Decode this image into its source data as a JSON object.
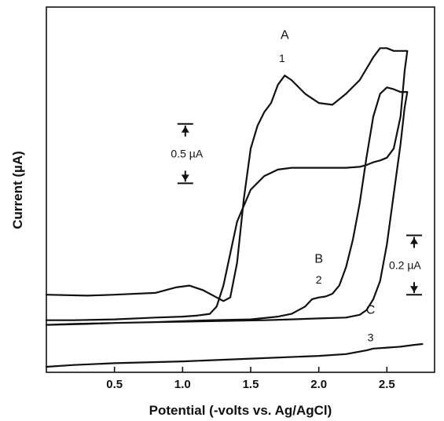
{
  "chart_data": {
    "type": "line",
    "title": "",
    "xlabel": "Potential (-volts vs. Ag/AgCl)",
    "ylabel": "Current (µA)",
    "xlim": [
      0.0,
      2.85
    ],
    "ylim": [
      0.0,
      4.0
    ],
    "x_ticks": [
      0.5,
      1.0,
      1.5,
      2.0,
      2.5
    ],
    "x_tick_labels": [
      "0.5",
      "1.0",
      "1.5",
      "2.0",
      "2.5"
    ],
    "grid": false,
    "series": [
      {
        "name": "A",
        "x": [
          0.0,
          0.3,
          0.5,
          0.8,
          0.95,
          1.05,
          1.15,
          1.25,
          1.3,
          1.35,
          1.4,
          1.45,
          1.5,
          1.55,
          1.6,
          1.65,
          1.7,
          1.75,
          1.8,
          1.9,
          2.0,
          2.1,
          2.2,
          2.3,
          2.4,
          2.45,
          2.5,
          2.55,
          2.6,
          2.65,
          2.63,
          2.6,
          2.55,
          2.5,
          2.45,
          2.4,
          2.35,
          2.3,
          2.2,
          2.1,
          2.0,
          1.9,
          1.8,
          1.7,
          1.6,
          1.5,
          1.4,
          1.3,
          1.25,
          1.2,
          1.1,
          1.0,
          0.8,
          0.5,
          0.2,
          0.0
        ],
        "y": [
          0.85,
          0.84,
          0.85,
          0.87,
          0.93,
          0.95,
          0.9,
          0.82,
          0.78,
          0.82,
          1.2,
          1.9,
          2.45,
          2.7,
          2.85,
          2.95,
          3.15,
          3.25,
          3.2,
          3.05,
          2.95,
          2.93,
          3.05,
          3.2,
          3.45,
          3.55,
          3.55,
          3.52,
          3.52,
          3.52,
          3.3,
          2.8,
          2.45,
          2.35,
          2.32,
          2.3,
          2.27,
          2.25,
          2.24,
          2.24,
          2.24,
          2.24,
          2.24,
          2.22,
          2.15,
          2.0,
          1.65,
          0.95,
          0.72,
          0.64,
          0.62,
          0.61,
          0.6,
          0.58,
          0.57,
          0.57
        ]
      },
      {
        "name": "B",
        "x": [
          0.0,
          0.3,
          0.5,
          0.8,
          1.0,
          1.2,
          1.5,
          1.7,
          1.8,
          1.9,
          1.95,
          2.0,
          2.05,
          2.1,
          2.15,
          2.2,
          2.25,
          2.3,
          2.35,
          2.4,
          2.45,
          2.5,
          2.55,
          2.6,
          2.65,
          2.63,
          2.6,
          2.55,
          2.5,
          2.45,
          2.4,
          2.35,
          2.3,
          2.2,
          2.0,
          1.8,
          1.6,
          1.2,
          0.8,
          0.5,
          0.2,
          0.0
        ],
        "y": [
          0.52,
          0.53,
          0.54,
          0.55,
          0.56,
          0.57,
          0.58,
          0.61,
          0.64,
          0.72,
          0.8,
          0.82,
          0.83,
          0.86,
          0.95,
          1.15,
          1.45,
          1.85,
          2.35,
          2.8,
          3.05,
          3.12,
          3.1,
          3.07,
          3.07,
          2.9,
          2.5,
          1.95,
          1.4,
          1.0,
          0.8,
          0.68,
          0.63,
          0.6,
          0.59,
          0.58,
          0.57,
          0.56,
          0.55,
          0.54,
          0.53,
          0.52
        ]
      },
      {
        "name": "C",
        "x": [
          0.0,
          0.2,
          0.5,
          1.0,
          1.5,
          2.0,
          2.2,
          2.35,
          2.4,
          2.5,
          2.6,
          2.7,
          2.76
        ],
        "y": [
          0.06,
          0.08,
          0.1,
          0.12,
          0.15,
          0.18,
          0.2,
          0.24,
          0.26,
          0.27,
          0.28,
          0.3,
          0.31
        ]
      }
    ],
    "annotations": [
      {
        "text": "A",
        "x": 1.75,
        "y": 3.65
      },
      {
        "text": "1",
        "x": 1.73,
        "y": 3.4
      },
      {
        "text": "B",
        "x": 2.0,
        "y": 1.2
      },
      {
        "text": "2",
        "x": 2.0,
        "y": 0.97
      },
      {
        "text": "C",
        "x": 2.38,
        "y": 0.64
      },
      {
        "text": "3",
        "x": 2.38,
        "y": 0.34
      }
    ],
    "scale_bars": [
      {
        "label": "0.5 µA",
        "x": 1.02,
        "y_top": 2.72,
        "y_bottom": 2.07
      },
      {
        "label": "0.2 µA",
        "x": 2.7,
        "y_top": 1.5,
        "y_bottom": 0.85
      }
    ]
  }
}
